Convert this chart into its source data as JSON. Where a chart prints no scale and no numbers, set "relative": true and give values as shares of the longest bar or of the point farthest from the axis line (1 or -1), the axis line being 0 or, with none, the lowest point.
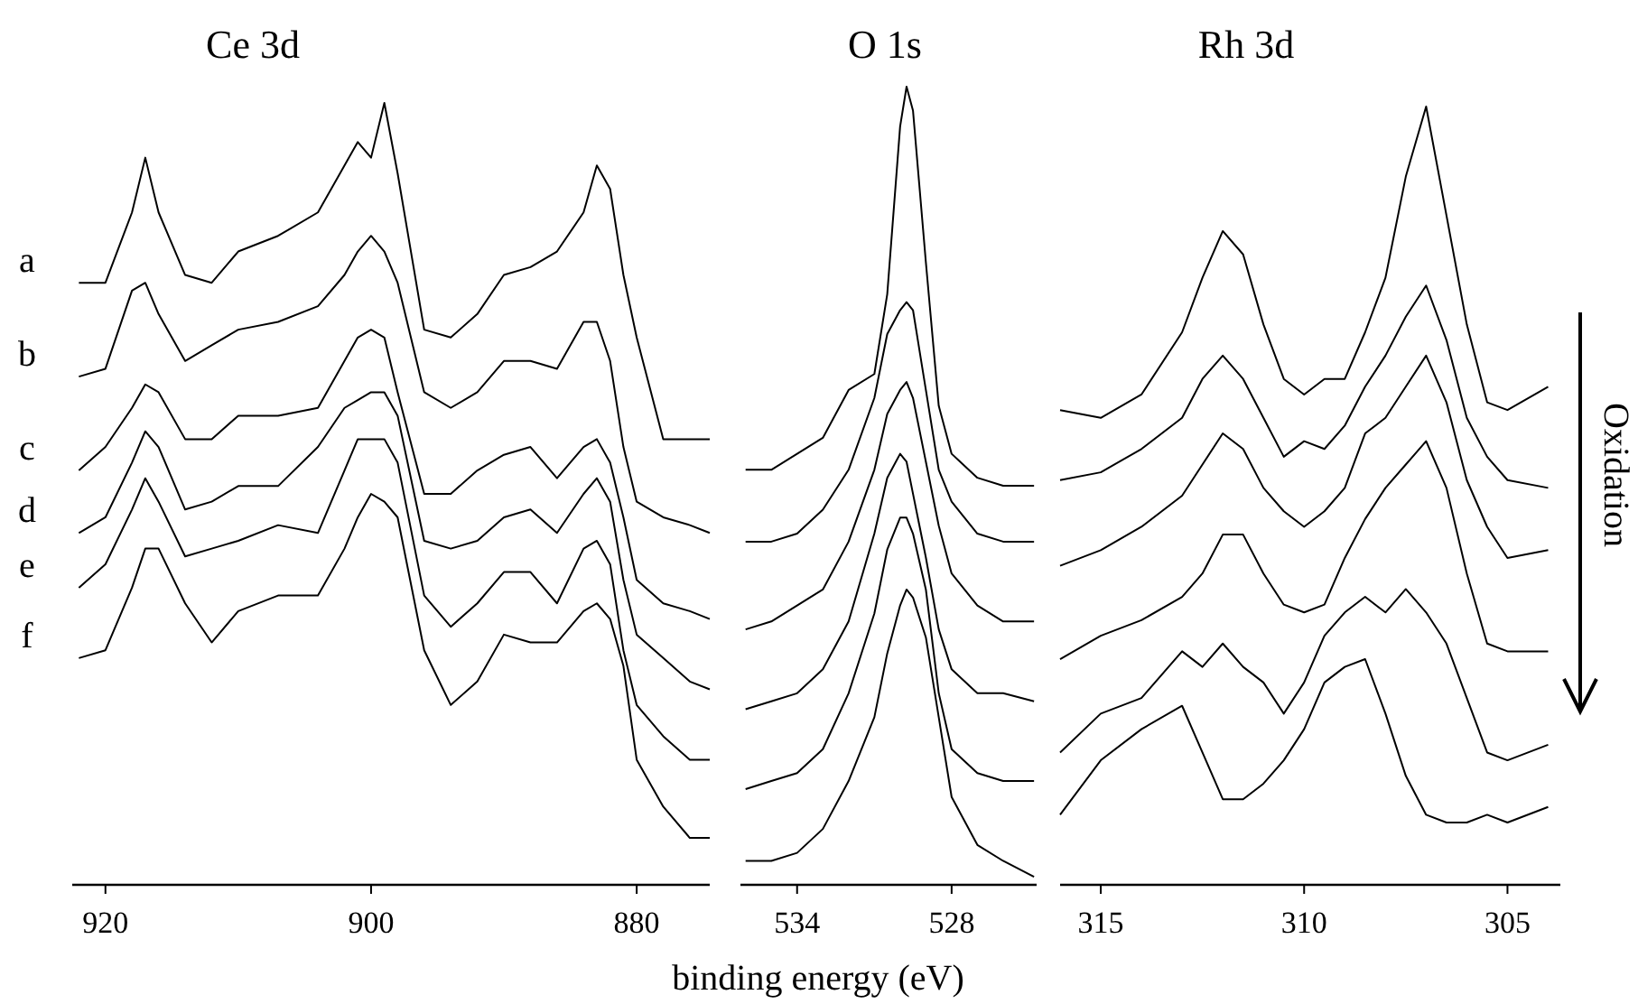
{
  "chart_data": [
    {
      "type": "line",
      "title": "Ce 3d",
      "relative": true,
      "xlim": [
        922.5,
        874.5
      ],
      "xticks": [
        920,
        900,
        880
      ],
      "x": [
        922,
        920,
        918,
        917,
        916,
        914,
        912,
        910,
        907,
        904,
        902,
        901,
        900,
        899,
        898,
        896,
        894,
        892,
        890,
        888,
        886,
        884,
        883,
        882,
        881,
        880,
        878,
        876,
        874.5
      ],
      "series": [
        {
          "name": "a",
          "color": "#000000",
          "values": [
            0.77,
            0.77,
            0.86,
            0.93,
            0.86,
            0.78,
            0.77,
            0.81,
            0.83,
            0.86,
            0.92,
            0.95,
            0.93,
            1.0,
            0.91,
            0.71,
            0.7,
            0.73,
            0.78,
            0.79,
            0.81,
            0.86,
            0.92,
            0.89,
            0.78,
            0.7,
            0.57,
            0.57,
            0.57
          ]
        },
        {
          "name": "b",
          "color": "#000000",
          "values": [
            0.65,
            0.66,
            0.76,
            0.77,
            0.73,
            0.67,
            0.69,
            0.71,
            0.72,
            0.74,
            0.78,
            0.81,
            0.83,
            0.81,
            0.77,
            0.63,
            0.61,
            0.63,
            0.67,
            0.67,
            0.66,
            0.72,
            0.72,
            0.67,
            0.56,
            0.49,
            0.47,
            0.46,
            0.45
          ]
        },
        {
          "name": "c",
          "color": "#000000",
          "values": [
            0.53,
            0.56,
            0.61,
            0.64,
            0.63,
            0.57,
            0.57,
            0.6,
            0.6,
            0.61,
            0.67,
            0.7,
            0.71,
            0.7,
            0.63,
            0.5,
            0.5,
            0.53,
            0.55,
            0.56,
            0.52,
            0.56,
            0.57,
            0.54,
            0.47,
            0.39,
            0.36,
            0.35,
            0.34
          ]
        },
        {
          "name": "d",
          "color": "#000000",
          "values": [
            0.45,
            0.47,
            0.54,
            0.58,
            0.56,
            0.48,
            0.49,
            0.51,
            0.51,
            0.56,
            0.61,
            0.62,
            0.63,
            0.63,
            0.6,
            0.44,
            0.43,
            0.44,
            0.47,
            0.48,
            0.45,
            0.5,
            0.52,
            0.49,
            0.39,
            0.32,
            0.29,
            0.26,
            0.25
          ]
        },
        {
          "name": "e",
          "color": "#000000",
          "values": [
            0.38,
            0.41,
            0.48,
            0.52,
            0.49,
            0.42,
            0.43,
            0.44,
            0.46,
            0.45,
            0.53,
            0.57,
            0.57,
            0.57,
            0.54,
            0.37,
            0.33,
            0.36,
            0.4,
            0.4,
            0.36,
            0.43,
            0.44,
            0.41,
            0.3,
            0.23,
            0.19,
            0.16,
            0.16
          ]
        },
        {
          "name": "f",
          "color": "#000000",
          "values": [
            0.29,
            0.3,
            0.38,
            0.43,
            0.43,
            0.36,
            0.31,
            0.35,
            0.37,
            0.37,
            0.43,
            0.47,
            0.5,
            0.49,
            0.47,
            0.3,
            0.23,
            0.26,
            0.32,
            0.31,
            0.31,
            0.35,
            0.36,
            0.34,
            0.28,
            0.16,
            0.1,
            0.06,
            0.06
          ]
        }
      ]
    },
    {
      "type": "line",
      "title": "O 1s",
      "xlabel": "binding energy (eV)",
      "relative": true,
      "xlim": [
        536.2,
        524.7
      ],
      "xticks": [
        534,
        528
      ],
      "x": [
        536,
        535,
        534,
        533,
        532,
        531,
        530.5,
        530,
        529.75,
        529.5,
        529,
        528.5,
        528,
        527,
        526,
        524.8
      ],
      "series": [
        {
          "color": "#000000",
          "values": [
            0.52,
            0.52,
            0.54,
            0.56,
            0.62,
            0.64,
            0.74,
            0.95,
            1.0,
            0.97,
            0.78,
            0.6,
            0.54,
            0.51,
            0.5,
            0.5
          ]
        },
        {
          "color": "#000000",
          "values": [
            0.43,
            0.43,
            0.44,
            0.47,
            0.52,
            0.61,
            0.69,
            0.72,
            0.73,
            0.72,
            0.62,
            0.52,
            0.48,
            0.44,
            0.43,
            0.43
          ]
        },
        {
          "color": "#000000",
          "values": [
            0.32,
            0.33,
            0.35,
            0.37,
            0.43,
            0.52,
            0.59,
            0.62,
            0.63,
            0.61,
            0.53,
            0.45,
            0.39,
            0.35,
            0.33,
            0.33
          ]
        },
        {
          "color": "#000000",
          "values": [
            0.22,
            0.23,
            0.24,
            0.27,
            0.33,
            0.44,
            0.51,
            0.54,
            0.53,
            0.49,
            0.41,
            0.32,
            0.27,
            0.24,
            0.24,
            0.23
          ]
        },
        {
          "color": "#000000",
          "values": [
            0.12,
            0.13,
            0.14,
            0.17,
            0.24,
            0.34,
            0.42,
            0.46,
            0.46,
            0.44,
            0.37,
            0.24,
            0.17,
            0.14,
            0.13,
            0.13
          ]
        },
        {
          "color": "#000000",
          "values": [
            0.03,
            0.03,
            0.04,
            0.07,
            0.13,
            0.21,
            0.29,
            0.35,
            0.37,
            0.36,
            0.31,
            0.21,
            0.11,
            0.05,
            0.03,
            0.01
          ]
        }
      ]
    },
    {
      "type": "line",
      "title": "Rh 3d",
      "annotations": [
        "Oxidation"
      ],
      "relative": true,
      "xlim": [
        316,
        303.7
      ],
      "xticks": [
        315,
        310,
        305
      ],
      "x": [
        316,
        315,
        314,
        313,
        312.5,
        312,
        311.5,
        311,
        310.5,
        310,
        309.5,
        309,
        308.5,
        308,
        307.5,
        307,
        306.5,
        306,
        305.5,
        305,
        304
      ],
      "series": [
        {
          "color": "#000000",
          "values": [
            0.61,
            0.6,
            0.63,
            0.71,
            0.78,
            0.84,
            0.81,
            0.72,
            0.65,
            0.63,
            0.65,
            0.65,
            0.71,
            0.78,
            0.91,
            1.0,
            0.86,
            0.72,
            0.62,
            0.61,
            0.64
          ]
        },
        {
          "color": "#000000",
          "values": [
            0.52,
            0.53,
            0.56,
            0.6,
            0.65,
            0.68,
            0.65,
            0.6,
            0.55,
            0.57,
            0.56,
            0.59,
            0.64,
            0.68,
            0.73,
            0.77,
            0.7,
            0.6,
            0.55,
            0.52,
            0.51
          ]
        },
        {
          "color": "#000000",
          "values": [
            0.41,
            0.43,
            0.46,
            0.5,
            0.54,
            0.58,
            0.56,
            0.51,
            0.48,
            0.46,
            0.48,
            0.51,
            0.58,
            0.6,
            0.64,
            0.68,
            0.62,
            0.52,
            0.46,
            0.42,
            0.43
          ]
        },
        {
          "color": "#000000",
          "values": [
            0.29,
            0.32,
            0.34,
            0.37,
            0.4,
            0.45,
            0.45,
            0.4,
            0.36,
            0.35,
            0.36,
            0.42,
            0.47,
            0.51,
            0.54,
            0.57,
            0.51,
            0.4,
            0.31,
            0.3,
            0.3
          ]
        },
        {
          "color": "#000000",
          "values": [
            0.17,
            0.22,
            0.24,
            0.3,
            0.28,
            0.31,
            0.28,
            0.26,
            0.22,
            0.26,
            0.32,
            0.35,
            0.37,
            0.35,
            0.38,
            0.35,
            0.31,
            0.24,
            0.17,
            0.16,
            0.18
          ]
        },
        {
          "color": "#000000",
          "values": [
            0.09,
            0.16,
            0.2,
            0.23,
            0.17,
            0.11,
            0.11,
            0.13,
            0.16,
            0.2,
            0.26,
            0.28,
            0.29,
            0.22,
            0.14,
            0.09,
            0.08,
            0.08,
            0.09,
            0.08,
            0.1
          ]
        }
      ]
    }
  ]
}
